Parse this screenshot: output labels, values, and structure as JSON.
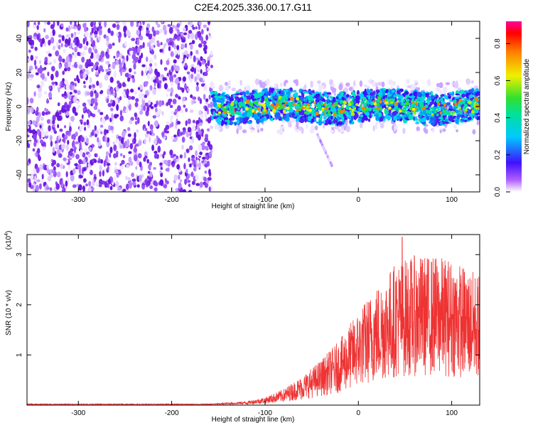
{
  "title": "C2E4.2025.336.00.17.G11",
  "chart_data": [
    {
      "type": "heatmap",
      "description_of_content": "Spectrogram of normalized spectral amplitude vs height of straight line",
      "xlabel": "Height of straight line (km)",
      "ylabel": "Frequency (Hz)",
      "xlim": [
        -355,
        130
      ],
      "ylim": [
        -50,
        50
      ],
      "xticks": [
        -300,
        -200,
        -100,
        0,
        100
      ],
      "xtick_labels": [
        "-300",
        "-200",
        "-100",
        "0",
        "100"
      ],
      "yticks": [
        -40,
        -20,
        0,
        20,
        40
      ],
      "ytick_labels": [
        "-40",
        "-20",
        "0",
        "20",
        "40"
      ],
      "noise_region_x": [
        -355,
        -157
      ],
      "signal_band": {
        "x": [
          -157,
          130
        ],
        "center_hz": 0,
        "half_width_hz": 9
      },
      "faint_streak": {
        "x": [
          -45,
          -28
        ],
        "y": [
          -15,
          -35
        ]
      },
      "colorbar": {
        "label": "Normalized spectral amplitude",
        "range": [
          0,
          0.92
        ],
        "ticks": [
          0.0,
          0.2,
          0.4,
          0.6,
          0.8
        ],
        "tick_labels": [
          "0.0",
          "0.2",
          "0.4",
          "0.6",
          "0.8"
        ]
      }
    },
    {
      "type": "line",
      "xlabel": "Height of straight line (km)",
      "ylabel": "SNR (10 * v/v)",
      "ylabel_scale": "(x10",
      "ylabel_scale_exp": "4",
      "ylabel_scale_close": ")",
      "xlim": [
        -355,
        130
      ],
      "ylim": [
        0,
        3.4
      ],
      "xticks": [
        -300,
        -200,
        -100,
        0,
        100
      ],
      "xtick_labels": [
        "-300",
        "-200",
        "-100",
        "0",
        "100"
      ],
      "yticks": [
        1,
        2,
        3
      ],
      "ytick_labels": [
        "1",
        "2",
        "3"
      ],
      "color": "#ee3333",
      "envelope": [
        {
          "x": -355,
          "y": 0.02
        },
        {
          "x": -160,
          "y": 0.02
        },
        {
          "x": -120,
          "y": 0.06
        },
        {
          "x": -100,
          "y": 0.12
        },
        {
          "x": -80,
          "y": 0.25
        },
        {
          "x": -60,
          "y": 0.45
        },
        {
          "x": -40,
          "y": 0.7
        },
        {
          "x": -20,
          "y": 1.0
        },
        {
          "x": 0,
          "y": 1.45
        },
        {
          "x": 20,
          "y": 1.85
        },
        {
          "x": 40,
          "y": 2.2
        },
        {
          "x": 60,
          "y": 2.3
        },
        {
          "x": 80,
          "y": 2.3
        },
        {
          "x": 100,
          "y": 2.25
        },
        {
          "x": 130,
          "y": 2.0
        }
      ],
      "peak": {
        "x": 47,
        "y": 3.35
      }
    }
  ]
}
